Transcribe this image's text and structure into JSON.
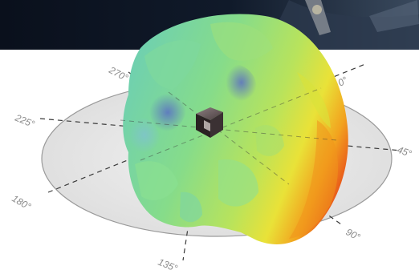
{
  "angle_labels": {
    "a0": "0°",
    "a45": "45°",
    "a90": "90°",
    "a135": "135°",
    "a180": "180°",
    "a225": "225°",
    "a270": "270°"
  },
  "colors": {
    "banner_dark": "#0b1220",
    "banner_mid": "#243348",
    "plate_fill": "#e6e6e6",
    "plate_stroke": "#9a9a9a",
    "dashed_axis": "#3a3a3a",
    "pattern_green": "#7fdc8a",
    "pattern_cyan": "#7cc8c8",
    "pattern_blue": "#6f86c8",
    "pattern_yellow": "#e6e23a",
    "pattern_orange": "#f08a1c",
    "pattern_red": "#e84a16",
    "cube_dark": "#2a2223"
  },
  "icons": {
    "device": "cube-device-icon"
  }
}
